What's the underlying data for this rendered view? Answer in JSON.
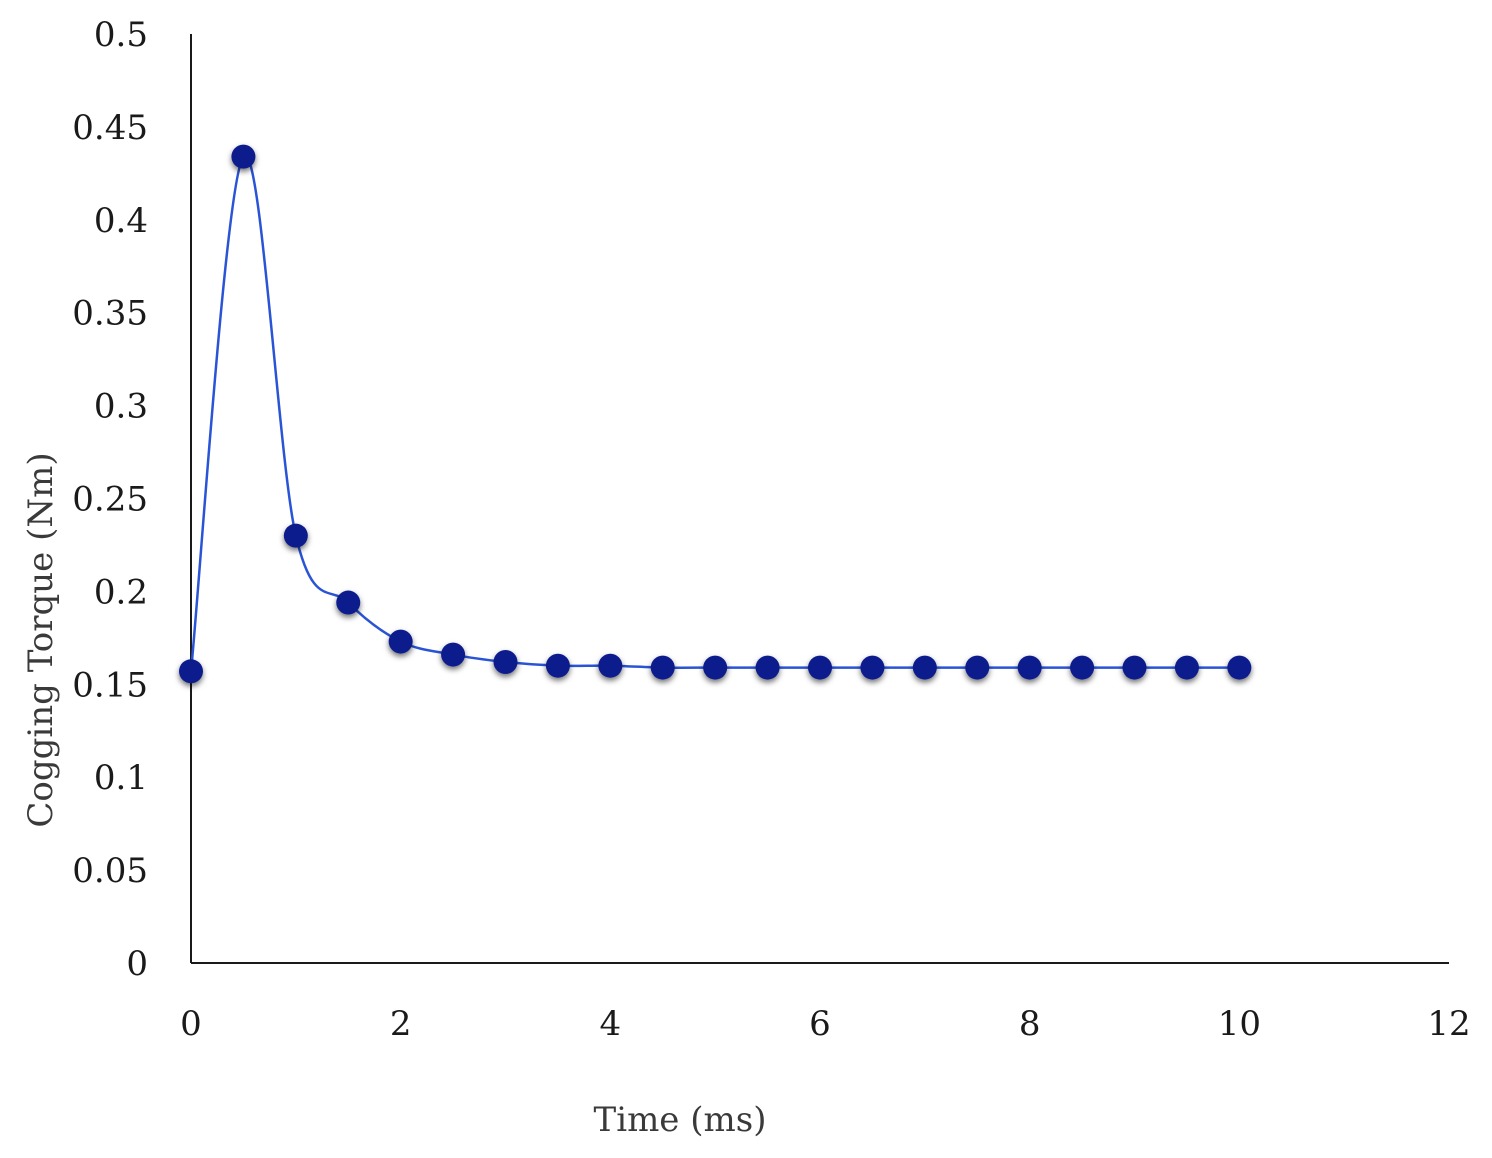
{
  "chart_data": {
    "type": "line",
    "title": "",
    "xlabel": "Time (ms)",
    "ylabel": "Cogging Torque (Nm)",
    "xlim": [
      0,
      12
    ],
    "ylim": [
      0,
      0.5
    ],
    "xticks": [
      "0",
      "2",
      "4",
      "6",
      "8",
      "10",
      "12"
    ],
    "yticks": [
      "0",
      "0.05",
      "0.1",
      "0.15",
      "0.2",
      "0.25",
      "0.3",
      "0.35",
      "0.4",
      "0.45",
      "0.5"
    ],
    "grid": false,
    "legend": "none",
    "series": [
      {
        "color": "#2a54d6",
        "marker_color": "#0a1c8c",
        "x": [
          0,
          0.5,
          1,
          1.5,
          2,
          2.5,
          3,
          3.5,
          4,
          4.5,
          5,
          5.5,
          6,
          6.5,
          7,
          7.5,
          8,
          8.5,
          9,
          9.5,
          10
        ],
        "y": [
          0.157,
          0.434,
          0.23,
          0.194,
          0.173,
          0.166,
          0.162,
          0.16,
          0.16,
          0.159,
          0.159,
          0.159,
          0.159,
          0.159,
          0.159,
          0.159,
          0.159,
          0.159,
          0.159,
          0.159,
          0.159
        ]
      }
    ]
  }
}
